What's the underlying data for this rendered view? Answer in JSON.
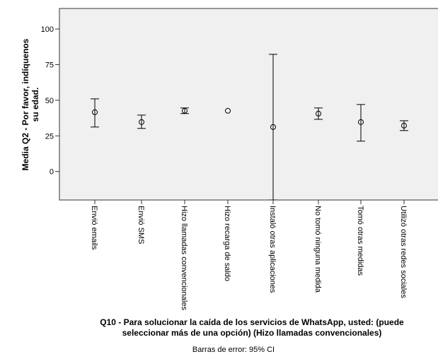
{
  "chart_data": {
    "type": "errorbar",
    "ylabel_lines": [
      "Media Q2 - Por favor, indíquenos",
      "su edad."
    ],
    "xlabel_lines": [
      "Q10 - Para solucionar la caída de los servicios de WhatsApp, usted: (puede",
      "seleccionar más de una opción) (Hizo llamadas convencionales)"
    ],
    "footnote": "Barras de error: 95% CI",
    "categories": [
      "Envió emails",
      "Envió SMS",
      "Hizo llamadas convencionales",
      "Hizo recarga de saldo",
      "Instaló otras aplicaciones",
      "No tomó ninguna medida",
      "Tomó otras medidas",
      "Utilizó otras redes sociales"
    ],
    "values": [
      41.6,
      34.7,
      42.6,
      42.6,
      31.2,
      40.6,
      34.7,
      32.2
    ],
    "ci_lower": [
      31.2,
      30.2,
      40.6,
      null,
      -20,
      36.6,
      21.3,
      28.7
    ],
    "ci_upper": [
      51,
      39.6,
      44.6,
      null,
      82.2,
      44.6,
      47,
      35.6
    ],
    "color": "#000000",
    "ylim": [
      -20,
      114.4
    ],
    "yticks": [
      0,
      25,
      50,
      75,
      100
    ]
  }
}
